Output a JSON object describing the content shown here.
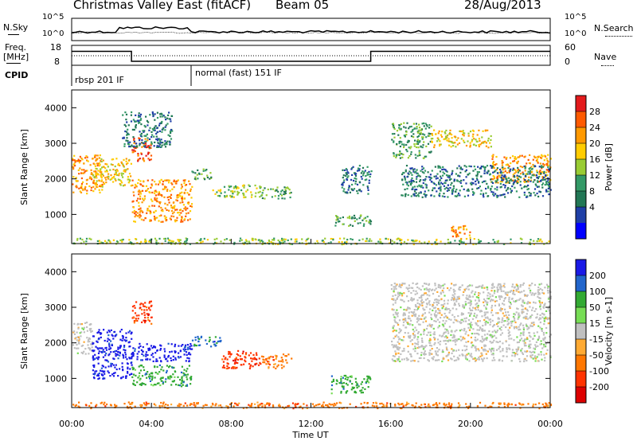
{
  "header": {
    "station": "Christmas Valley East (fitACF)",
    "beam": "Beam 05",
    "date": "28/Aug/2013"
  },
  "noise_panel": {
    "left_label": "N.Sky",
    "right_label": "N.Search",
    "left_ticks": [
      "10^5",
      "10^0"
    ],
    "right_ticks": [
      "10^5",
      "10^0"
    ]
  },
  "freq_panel": {
    "left_label_line1": "Freq.",
    "left_label_line2": "[MHz]",
    "right_label": "Nave",
    "left_ticks": [
      "18",
      "8"
    ],
    "right_ticks": [
      "60",
      "0"
    ],
    "freq_trace": {
      "x_hours": [
        0,
        3,
        3,
        15,
        15,
        24
      ],
      "freq_mhz": [
        15,
        15,
        10,
        10,
        15,
        15
      ]
    }
  },
  "cpid_panel": {
    "label": "CPID",
    "segments": [
      {
        "name": "rbsp 201 IF",
        "start_hour": 0
      },
      {
        "name": "normal (fast) 151 IF",
        "start_hour": 6
      }
    ]
  },
  "chart_data": [
    {
      "type": "heatmap",
      "panel": "power",
      "x_range_hours": [
        0,
        24
      ],
      "ylabel": "Slant Range [km]",
      "ylim": [
        180,
        4500
      ],
      "yticks": [
        "4000",
        "3000",
        "2000",
        "1000"
      ],
      "colorbar": {
        "label": "Power [dB]",
        "ticks": [
          "28",
          "24",
          "20",
          "16",
          "12",
          "8",
          "4"
        ],
        "colors": [
          "#e31a1c",
          "#ff5a00",
          "#ff9900",
          "#ffcc00",
          "#99cc33",
          "#339966",
          "#227755",
          "#1f3fa6",
          "#0000ff"
        ]
      },
      "echo_regions": [
        {
          "t0": 0.0,
          "t1": 1.5,
          "r0": 1600,
          "r1": 2700,
          "level": 20
        },
        {
          "t0": 1.0,
          "t1": 3.0,
          "r0": 1800,
          "r1": 2600,
          "level": 16
        },
        {
          "t0": 3.0,
          "t1": 4.0,
          "r0": 2500,
          "r1": 3200,
          "level": 24
        },
        {
          "t0": 3.0,
          "t1": 6.0,
          "r0": 800,
          "r1": 2000,
          "level": 20
        },
        {
          "t0": 2.5,
          "t1": 5.0,
          "r0": 2900,
          "r1": 3900,
          "level": 4
        },
        {
          "t0": 6.0,
          "t1": 7.0,
          "r0": 2000,
          "r1": 2300,
          "level": 8
        },
        {
          "t0": 7.0,
          "t1": 9.5,
          "r0": 1500,
          "r1": 1850,
          "level": 12
        },
        {
          "t0": 9.5,
          "t1": 11.0,
          "r0": 1450,
          "r1": 1800,
          "level": 8
        },
        {
          "t0": 13.5,
          "t1": 15.0,
          "r0": 1600,
          "r1": 2400,
          "level": 4
        },
        {
          "t0": 13.0,
          "t1": 15.0,
          "r0": 700,
          "r1": 1000,
          "level": 8
        },
        {
          "t0": 16.0,
          "t1": 18.0,
          "r0": 2600,
          "r1": 3600,
          "level": 8
        },
        {
          "t0": 18.0,
          "t1": 21.0,
          "r0": 2900,
          "r1": 3400,
          "level": 16
        },
        {
          "t0": 21.0,
          "t1": 24.0,
          "r0": 1900,
          "r1": 2700,
          "level": 20
        },
        {
          "t0": 16.5,
          "t1": 24.0,
          "r0": 1500,
          "r1": 2400,
          "level": 4
        },
        {
          "t0": 19.0,
          "t1": 20.0,
          "r0": 300,
          "r1": 700,
          "level": 20
        },
        {
          "t0": 0.0,
          "t1": 24.0,
          "r0": 180,
          "r1": 350,
          "level": 12
        }
      ]
    },
    {
      "type": "heatmap",
      "panel": "velocity",
      "x_range_hours": [
        0,
        24
      ],
      "x_ticks": [
        "00:00",
        "04:00",
        "08:00",
        "12:00",
        "16:00",
        "20:00",
        "00:00"
      ],
      "xlabel": "Time UT",
      "ylabel": "Slant Range [km]",
      "ylim": [
        180,
        4500
      ],
      "yticks": [
        "4000",
        "3000",
        "2000",
        "1000"
      ],
      "colorbar": {
        "label": "Velocity [m s-1]",
        "ticks": [
          "200",
          "100",
          "50",
          "15",
          "-15",
          "-50",
          "-100",
          "-200"
        ],
        "colors": [
          "#1a1ae6",
          "#2266cc",
          "#33aa33",
          "#77dd55",
          "#c0c0c0",
          "#ffaa33",
          "#ff7700",
          "#ff3300",
          "#dd0000"
        ]
      },
      "echo_regions": [
        {
          "t0": 0.0,
          "t1": 1.0,
          "r0": 1700,
          "r1": 2600,
          "level": 0
        },
        {
          "t0": 1.0,
          "t1": 3.0,
          "r0": 1000,
          "r1": 2400,
          "level": 200
        },
        {
          "t0": 3.0,
          "t1": 6.0,
          "r0": 1500,
          "r1": 2000,
          "level": 200
        },
        {
          "t0": 3.0,
          "t1": 4.0,
          "r0": 2500,
          "r1": 3200,
          "level": -100
        },
        {
          "t0": 3.0,
          "t1": 6.0,
          "r0": 800,
          "r1": 1400,
          "level": 50
        },
        {
          "t0": 6.0,
          "t1": 7.5,
          "r0": 1900,
          "r1": 2200,
          "level": 100
        },
        {
          "t0": 7.5,
          "t1": 9.5,
          "r0": 1300,
          "r1": 1800,
          "level": -100
        },
        {
          "t0": 9.5,
          "t1": 11.0,
          "r0": 1300,
          "r1": 1700,
          "level": -50
        },
        {
          "t0": 13.0,
          "t1": 15.0,
          "r0": 600,
          "r1": 1100,
          "level": 50
        },
        {
          "t0": 16.0,
          "t1": 24.0,
          "r0": 1500,
          "r1": 3700,
          "level": 0
        },
        {
          "t0": 0.0,
          "t1": 24.0,
          "r0": 180,
          "r1": 350,
          "level": -50
        }
      ]
    }
  ]
}
